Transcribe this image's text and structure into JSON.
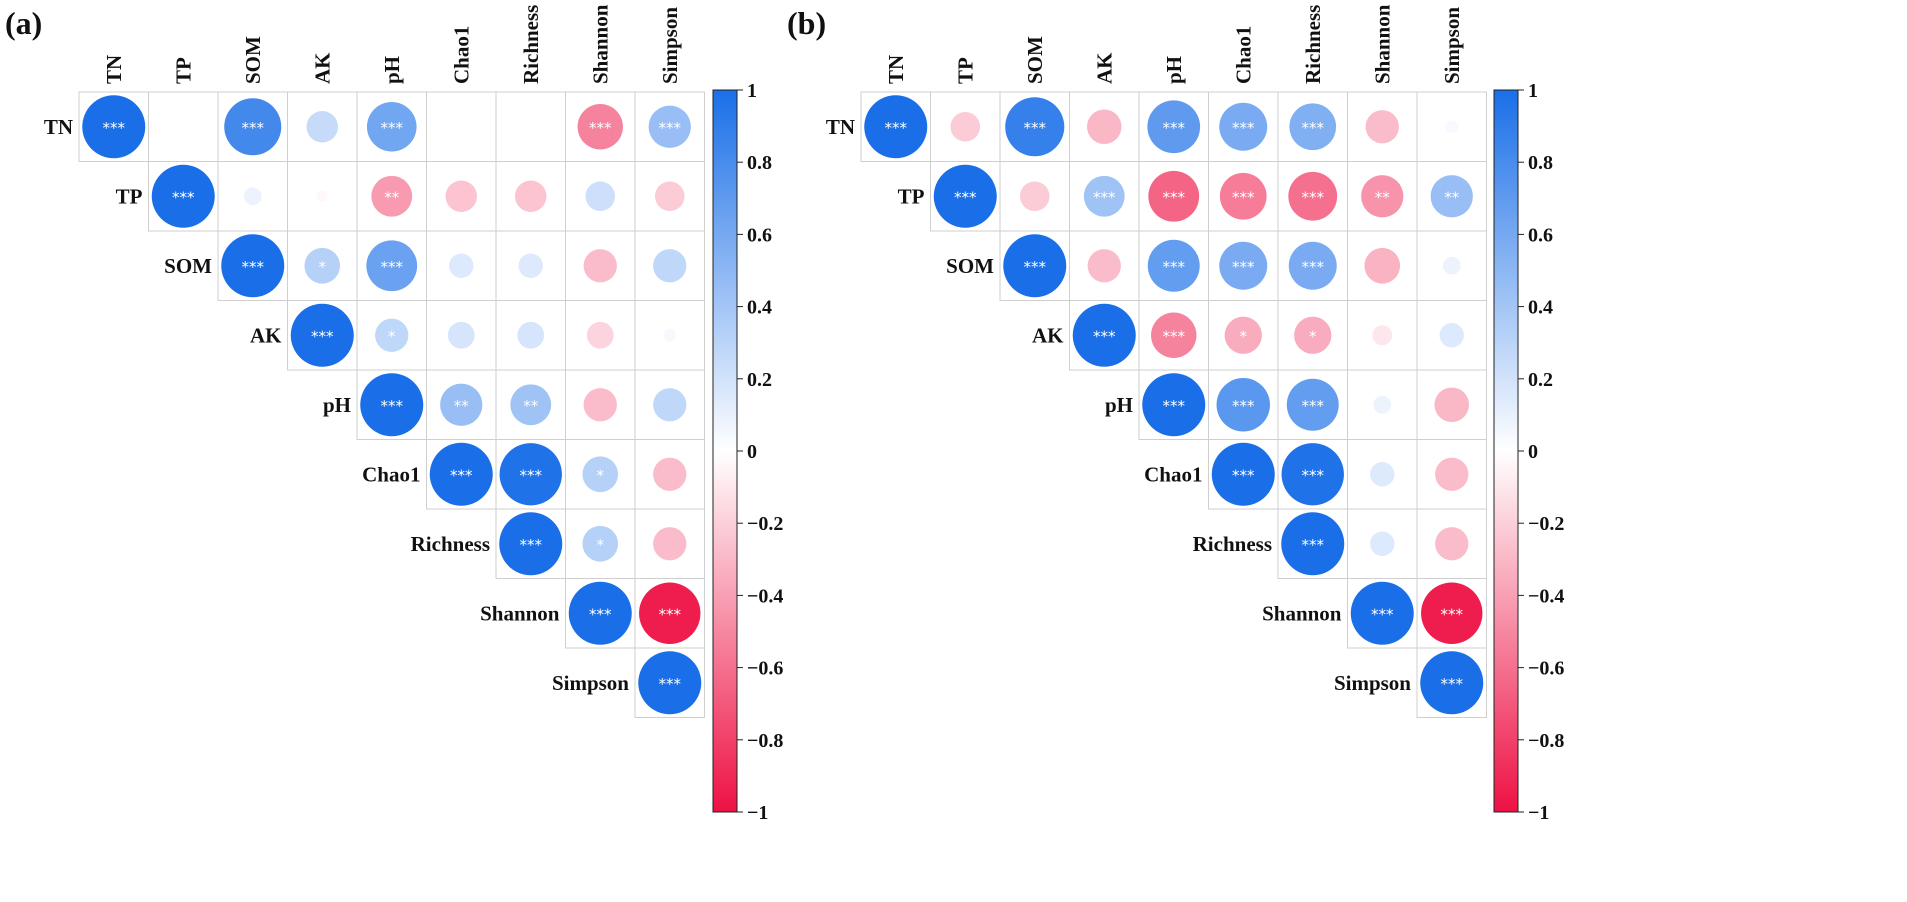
{
  "chart_data": [
    {
      "type": "heatmap",
      "panel_label": "(a)",
      "variables": [
        "TN",
        "TP",
        "SOM",
        "AK",
        "pH",
        "Chao1",
        "Richness",
        "Shannon",
        "Simpson"
      ],
      "matrix": [
        [
          1.0,
          0.01,
          0.82,
          0.25,
          0.62,
          0.0,
          0.0,
          -0.52,
          0.45
        ],
        [
          null,
          1.0,
          0.08,
          -0.03,
          -0.42,
          -0.25,
          -0.25,
          0.22,
          -0.22
        ],
        [
          null,
          null,
          1.0,
          0.32,
          0.65,
          0.15,
          0.15,
          -0.28,
          0.28
        ],
        [
          null,
          null,
          null,
          1.0,
          0.28,
          0.18,
          0.18,
          -0.18,
          0.04
        ],
        [
          null,
          null,
          null,
          null,
          1.0,
          0.45,
          0.42,
          -0.28,
          0.28
        ],
        [
          null,
          null,
          null,
          null,
          null,
          1.0,
          0.98,
          0.32,
          -0.28
        ],
        [
          null,
          null,
          null,
          null,
          null,
          null,
          1.0,
          0.32,
          -0.28
        ],
        [
          null,
          null,
          null,
          null,
          null,
          null,
          null,
          1.0,
          -0.95
        ],
        [
          null,
          null,
          null,
          null,
          null,
          null,
          null,
          null,
          1.0
        ]
      ],
      "significance": [
        [
          "***",
          "",
          "***",
          "",
          "***",
          "",
          "",
          "***",
          "***"
        ],
        [
          null,
          "***",
          "",
          "",
          "**",
          "",
          "",
          "",
          ""
        ],
        [
          null,
          null,
          "***",
          "*",
          "***",
          "",
          "",
          "",
          ""
        ],
        [
          null,
          null,
          null,
          "***",
          "*",
          "",
          "",
          "",
          ""
        ],
        [
          null,
          null,
          null,
          null,
          "***",
          "**",
          "**",
          "",
          ""
        ],
        [
          null,
          null,
          null,
          null,
          null,
          "***",
          "***",
          "*",
          ""
        ],
        [
          null,
          null,
          null,
          null,
          null,
          null,
          "***",
          "*",
          ""
        ],
        [
          null,
          null,
          null,
          null,
          null,
          null,
          null,
          "***",
          "***"
        ],
        [
          null,
          null,
          null,
          null,
          null,
          null,
          null,
          null,
          "***"
        ]
      ]
    },
    {
      "type": "heatmap",
      "panel_label": "(b)",
      "variables": [
        "TN",
        "TP",
        "SOM",
        "AK",
        "pH",
        "Chao1",
        "Richness",
        "Shannon",
        "Simpson"
      ],
      "matrix": [
        [
          1.0,
          -0.22,
          0.88,
          -0.3,
          0.7,
          0.58,
          0.55,
          -0.28,
          0.04
        ],
        [
          null,
          1.0,
          -0.22,
          0.42,
          -0.65,
          -0.55,
          -0.6,
          -0.45,
          0.45
        ],
        [
          null,
          null,
          1.0,
          -0.28,
          0.68,
          0.58,
          0.58,
          -0.32,
          0.08
        ],
        [
          null,
          null,
          null,
          1.0,
          -0.52,
          -0.35,
          -0.35,
          -0.1,
          0.15
        ],
        [
          null,
          null,
          null,
          null,
          1.0,
          0.72,
          0.68,
          0.08,
          -0.3
        ],
        [
          null,
          null,
          null,
          null,
          null,
          1.0,
          0.98,
          0.15,
          -0.28
        ],
        [
          null,
          null,
          null,
          null,
          null,
          null,
          1.0,
          0.15,
          -0.28
        ],
        [
          null,
          null,
          null,
          null,
          null,
          null,
          null,
          1.0,
          -0.95
        ],
        [
          null,
          null,
          null,
          null,
          null,
          null,
          null,
          null,
          1.0
        ]
      ],
      "significance": [
        [
          "***",
          "",
          "***",
          "",
          "***",
          "***",
          "***",
          "",
          ""
        ],
        [
          null,
          "***",
          "",
          "***",
          "***",
          "***",
          "***",
          "**",
          "**"
        ],
        [
          null,
          null,
          "***",
          "",
          "***",
          "***",
          "***",
          "",
          ""
        ],
        [
          null,
          null,
          null,
          "***",
          "***",
          "*",
          "*",
          "",
          ""
        ],
        [
          null,
          null,
          null,
          null,
          "***",
          "***",
          "***",
          "",
          ""
        ],
        [
          null,
          null,
          null,
          null,
          null,
          "***",
          "***",
          "",
          ""
        ],
        [
          null,
          null,
          null,
          null,
          null,
          null,
          "***",
          "",
          ""
        ],
        [
          null,
          null,
          null,
          null,
          null,
          null,
          null,
          "***",
          "***"
        ],
        [
          null,
          null,
          null,
          null,
          null,
          null,
          null,
          null,
          "***"
        ]
      ]
    }
  ],
  "colorbar": {
    "ticks": [
      1,
      0.8,
      0.6,
      0.4,
      0.2,
      0,
      -0.2,
      -0.4,
      -0.6,
      -0.8,
      -1
    ],
    "tick_labels": [
      "1",
      "0.8",
      "0.6",
      "0.4",
      "0.2",
      "0",
      "−0.2",
      "−0.4",
      "−0.6",
      "−0.8",
      "−1"
    ],
    "range": [
      -1,
      1
    ],
    "color_positive": "#1a6fe8",
    "color_zero": "#ffffff",
    "color_negative": "#ee1144"
  }
}
